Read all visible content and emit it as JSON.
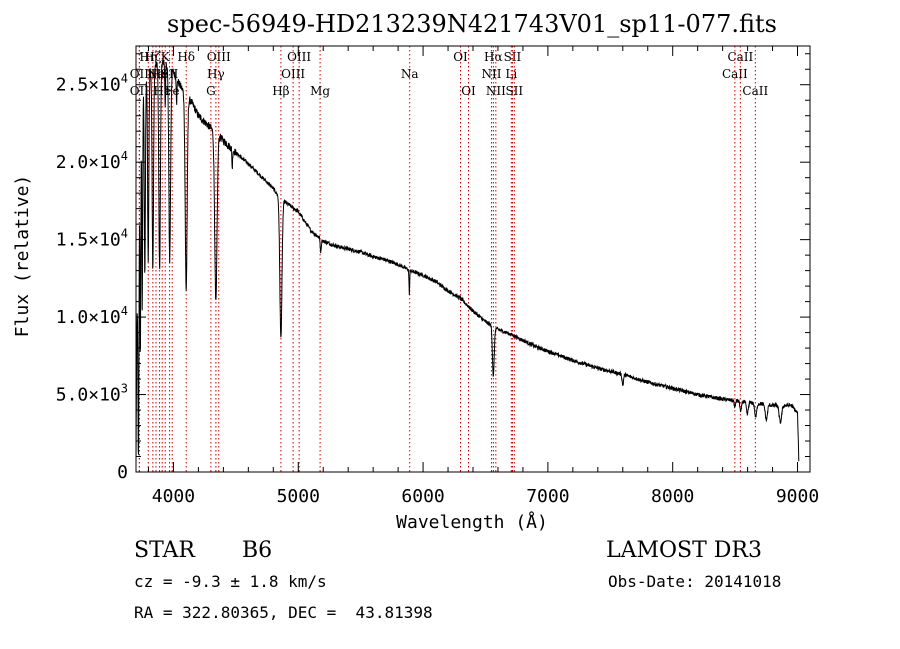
{
  "chart_data": {
    "type": "line",
    "title": "spec-56949-HD213239N421743V01_sp11-077.fits",
    "xlabel": "Wavelength (Å)",
    "ylabel": "Flux (relative)",
    "xlim": [
      3700,
      9100
    ],
    "ylim": [
      0,
      27500
    ],
    "x_ticks": [
      4000,
      5000,
      6000,
      7000,
      8000,
      9000
    ],
    "x_tick_labels": [
      "4000",
      "5000",
      "6000",
      "7000",
      "8000",
      "9000"
    ],
    "y_ticks": [
      0,
      5000,
      10000,
      15000,
      20000,
      25000
    ],
    "y_tick_labels": [
      {
        "mant": "0",
        "exp": ""
      },
      {
        "mant": "5.0×10",
        "exp": "3"
      },
      {
        "mant": "1.0×10",
        "exp": "4"
      },
      {
        "mant": "1.5×10",
        "exp": "4"
      },
      {
        "mant": "2.0×10",
        "exp": "4"
      },
      {
        "mant": "2.5×10",
        "exp": "4"
      }
    ],
    "line_color": "#000000",
    "marker_color": "#cc0000",
    "continuum": [
      [
        3700,
        400
      ],
      [
        3705,
        7000
      ],
      [
        3720,
        20000
      ],
      [
        3750,
        24500
      ],
      [
        3800,
        25800
      ],
      [
        3850,
        26200
      ],
      [
        3900,
        26500
      ],
      [
        3950,
        26300
      ],
      [
        4000,
        25800
      ],
      [
        4050,
        25000
      ],
      [
        4100,
        24300
      ],
      [
        4150,
        23800
      ],
      [
        4200,
        23000
      ],
      [
        4300,
        22200
      ],
      [
        4400,
        21400
      ],
      [
        4500,
        20600
      ],
      [
        4600,
        19900
      ],
      [
        4700,
        19100
      ],
      [
        4800,
        18300
      ],
      [
        4850,
        17700
      ],
      [
        4900,
        17400
      ],
      [
        5000,
        16800
      ],
      [
        5100,
        15600
      ],
      [
        5200,
        14900
      ],
      [
        5300,
        14600
      ],
      [
        5400,
        14400
      ],
      [
        5500,
        14200
      ],
      [
        5600,
        13900
      ],
      [
        5700,
        13700
      ],
      [
        5800,
        13400
      ],
      [
        5900,
        13000
      ],
      [
        6000,
        12700
      ],
      [
        6100,
        12300
      ],
      [
        6200,
        11700
      ],
      [
        6300,
        11200
      ],
      [
        6400,
        10400
      ],
      [
        6500,
        9700
      ],
      [
        6600,
        9200
      ],
      [
        6700,
        8900
      ],
      [
        6800,
        8500
      ],
      [
        6900,
        8100
      ],
      [
        7000,
        7800
      ],
      [
        7200,
        7200
      ],
      [
        7400,
        6700
      ],
      [
        7600,
        6300
      ],
      [
        7800,
        5800
      ],
      [
        8000,
        5400
      ],
      [
        8200,
        5000
      ],
      [
        8400,
        4700
      ],
      [
        8600,
        4500
      ],
      [
        8800,
        4300
      ],
      [
        8950,
        4300
      ],
      [
        9000,
        3800
      ],
      [
        9010,
        800
      ]
    ],
    "absorption_lines": [
      {
        "x": 3720,
        "depth": 19000,
        "width": 6
      },
      {
        "x": 3735,
        "depth": 15000,
        "width": 5
      },
      {
        "x": 3750,
        "depth": 14000,
        "width": 5
      },
      {
        "x": 3771,
        "depth": 12500,
        "width": 6
      },
      {
        "x": 3798,
        "depth": 12000,
        "width": 7
      },
      {
        "x": 3835,
        "depth": 13000,
        "width": 8
      },
      {
        "x": 3889,
        "depth": 13500,
        "width": 9
      },
      {
        "x": 3934,
        "depth": 3000,
        "width": 4
      },
      {
        "x": 3970,
        "depth": 12500,
        "width": 10
      },
      {
        "x": 4026,
        "depth": 1500,
        "width": 4
      },
      {
        "x": 4102,
        "depth": 12500,
        "width": 11
      },
      {
        "x": 4340,
        "depth": 11000,
        "width": 13
      },
      {
        "x": 4471,
        "depth": 1200,
        "width": 4
      },
      {
        "x": 4861,
        "depth": 9000,
        "width": 12
      },
      {
        "x": 5180,
        "depth": 800,
        "width": 6
      },
      {
        "x": 5890,
        "depth": 1500,
        "width": 4
      },
      {
        "x": 6563,
        "depth": 3200,
        "width": 10
      },
      {
        "x": 7600,
        "depth": 700,
        "width": 8
      },
      {
        "x": 8498,
        "depth": 500,
        "width": 6
      },
      {
        "x": 8545,
        "depth": 700,
        "width": 8
      },
      {
        "x": 8598,
        "depth": 800,
        "width": 10
      },
      {
        "x": 8665,
        "depth": 900,
        "width": 11
      },
      {
        "x": 8750,
        "depth": 1000,
        "width": 12
      },
      {
        "x": 8863,
        "depth": 1100,
        "width": 14
      }
    ],
    "line_markers": [
      {
        "x": 3727,
        "label": "OII",
        "row": 1
      },
      {
        "x": 3727,
        "label": "OII",
        "row": 2
      },
      {
        "x": 3798,
        "label": "Hη",
        "row": 0
      },
      {
        "x": 3835,
        "label": "Hζ",
        "row": 0
      },
      {
        "x": 3860,
        "label": "Ne",
        "row": 1
      },
      {
        "x": 3889,
        "label": "He",
        "row": 1
      },
      {
        "x": 3910,
        "label": "He",
        "row": 2
      },
      {
        "x": 3934,
        "label": "K",
        "row": 0
      },
      {
        "x": 3969,
        "label": "SII",
        "row": 1
      },
      {
        "x": 3990,
        "label": "Fe",
        "row": 2
      },
      {
        "x": 4102,
        "label": "Hδ",
        "row": 0
      },
      {
        "x": 4300,
        "label": "G",
        "row": 2
      },
      {
        "x": 4340,
        "label": "Hγ",
        "row": 1
      },
      {
        "x": 4363,
        "label": "OIII",
        "row": 0
      },
      {
        "x": 4861,
        "label": "Hβ",
        "row": 2
      },
      {
        "x": 4959,
        "label": "OIII",
        "row": 1
      },
      {
        "x": 5007,
        "label": "OIII",
        "row": 0
      },
      {
        "x": 5175,
        "label": "Mg",
        "row": 2
      },
      {
        "x": 5893,
        "label": "Na",
        "row": 1
      },
      {
        "x": 6300,
        "label": "OI",
        "row": 0
      },
      {
        "x": 6364,
        "label": "OI",
        "row": 2
      },
      {
        "x": 6548,
        "label": "NII",
        "row": 1
      },
      {
        "x": 6563,
        "label": "Hα",
        "row": 0
      },
      {
        "x": 6583,
        "label": "NII",
        "row": 2
      },
      {
        "x": 6707,
        "label": "Li",
        "row": 1
      },
      {
        "x": 6716,
        "label": "SII",
        "row": 0
      },
      {
        "x": 6731,
        "label": "SII",
        "row": 2
      },
      {
        "x": 8498,
        "label": "CaII",
        "row": 1
      },
      {
        "x": 8542,
        "label": "CaII",
        "row": 0
      },
      {
        "x": 8662,
        "label": "CaII",
        "row": 2
      }
    ]
  },
  "info": {
    "object_type": "STAR",
    "subclass": "B6",
    "survey": "LAMOST DR3",
    "redshift": "cz = -9.3 ± 1.8 km/s",
    "obs_date": "Obs-Date: 20141018",
    "coords": "RA = 322.80365, DEC =  43.81398"
  }
}
